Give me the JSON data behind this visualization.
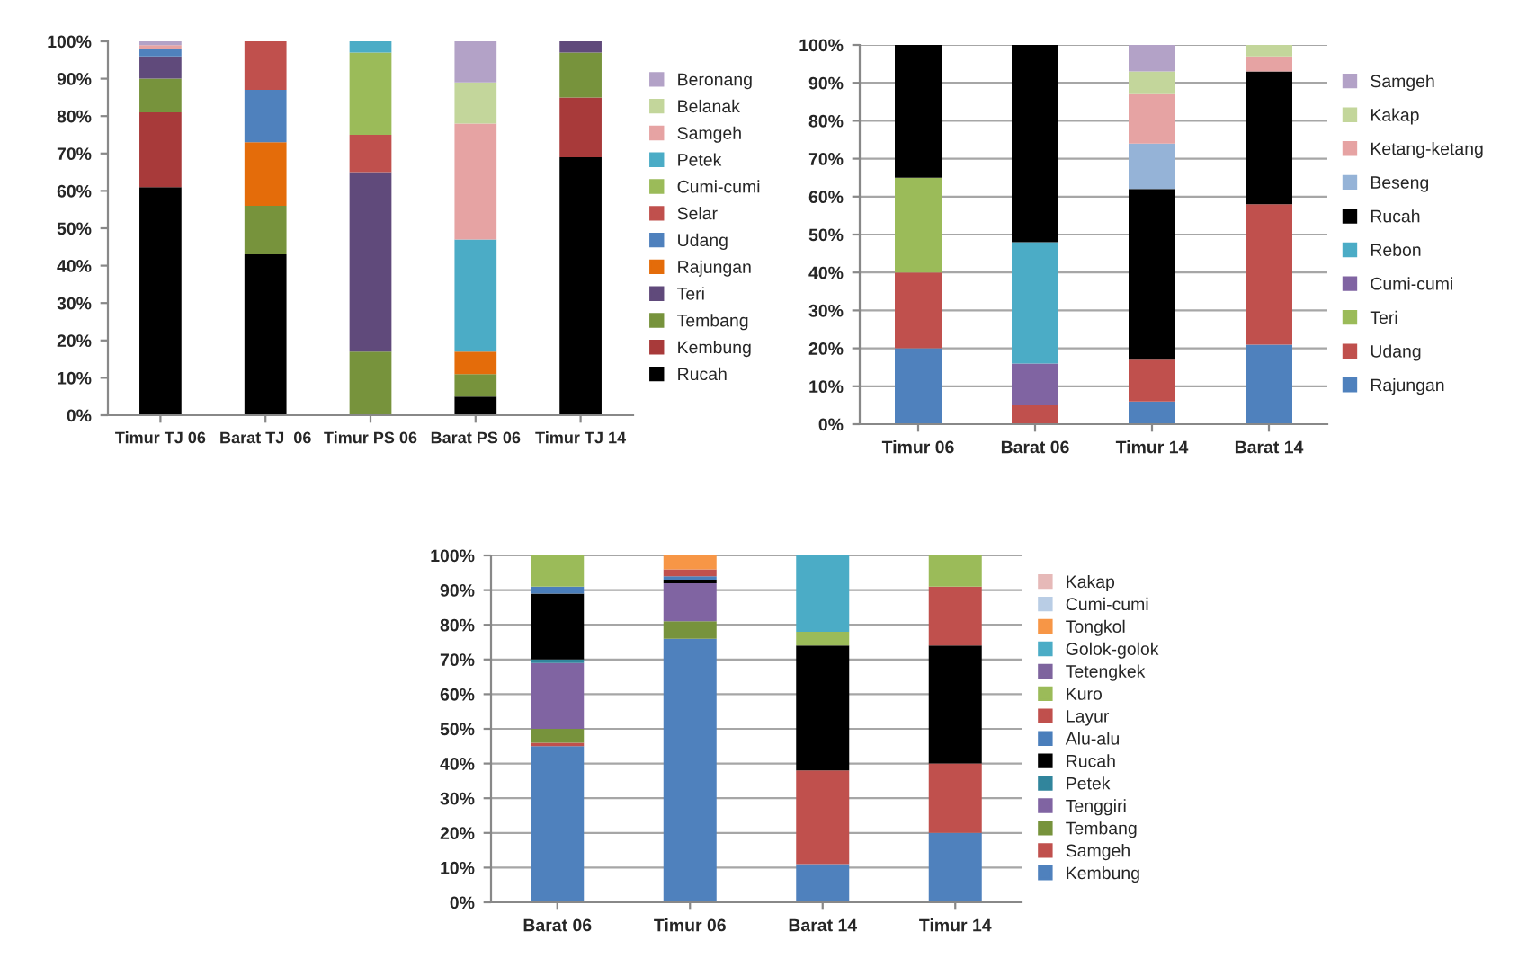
{
  "chart_data": [
    {
      "type": "bar",
      "stacked": true,
      "categories": [
        "Timur TJ 06",
        "Barat TJ  06",
        "Timur PS 06",
        "Barat PS 06",
        "Timur TJ 14"
      ],
      "ylim": [
        0,
        100
      ],
      "yticks": [
        {
          "value": 0,
          "label": "0%"
        },
        {
          "value": 10,
          "label": "10%"
        },
        {
          "value": 20,
          "label": "20%"
        },
        {
          "value": 30,
          "label": "30%"
        },
        {
          "value": 40,
          "label": "40%"
        },
        {
          "value": 50,
          "label": "50%"
        },
        {
          "value": 60,
          "label": "60%"
        },
        {
          "value": 70,
          "label": "70%"
        },
        {
          "value": 80,
          "label": "80%"
        },
        {
          "value": 90,
          "label": "90%"
        },
        {
          "value": 100,
          "label": "100%"
        }
      ],
      "grid": false,
      "legend": "right",
      "series": [
        {
          "name": "Rucah",
          "color": "#000000",
          "values": [
            61,
            43,
            null,
            5,
            69
          ]
        },
        {
          "name": "Kembung",
          "color": "#a83a3a",
          "values": [
            20,
            null,
            null,
            null,
            16
          ]
        },
        {
          "name": "Tembang",
          "color": "#77933c",
          "values": [
            9,
            13,
            17,
            6,
            12
          ]
        },
        {
          "name": "Teri",
          "color": "#604a7b",
          "values": [
            6,
            null,
            48,
            null,
            3
          ]
        },
        {
          "name": "Rajungan",
          "color": "#e46c0a",
          "values": [
            null,
            17,
            null,
            6,
            null
          ]
        },
        {
          "name": "Udang",
          "color": "#4f81bd",
          "values": [
            2,
            14,
            null,
            null,
            null
          ]
        },
        {
          "name": "Selar",
          "color": "#c0504d",
          "values": [
            null,
            13,
            10,
            null,
            null
          ]
        },
        {
          "name": "Cumi-cumi",
          "color": "#9bbb59",
          "values": [
            null,
            null,
            22,
            null,
            null
          ]
        },
        {
          "name": "Petek",
          "color": "#4bacc6",
          "values": [
            null,
            null,
            3,
            30,
            null
          ]
        },
        {
          "name": "Samgeh",
          "color": "#e6a3a3",
          "values": [
            1,
            null,
            null,
            31,
            null
          ]
        },
        {
          "name": "Belanak",
          "color": "#c3d69b",
          "values": [
            null,
            null,
            null,
            11,
            null
          ]
        },
        {
          "name": "Beronang",
          "color": "#b3a2c7",
          "values": [
            1,
            null,
            null,
            11,
            null
          ]
        }
      ]
    },
    {
      "type": "bar",
      "stacked": true,
      "categories": [
        "Timur 06",
        "Barat 06",
        "Timur 14",
        "Barat 14"
      ],
      "ylim": [
        0,
        100
      ],
      "yticks": [
        {
          "value": 0,
          "label": "0%"
        },
        {
          "value": 10,
          "label": "10%"
        },
        {
          "value": 20,
          "label": "20%"
        },
        {
          "value": 30,
          "label": "30%"
        },
        {
          "value": 40,
          "label": "40%"
        },
        {
          "value": 50,
          "label": "50%"
        },
        {
          "value": 60,
          "label": "60%"
        },
        {
          "value": 70,
          "label": "70%"
        },
        {
          "value": 80,
          "label": "80%"
        },
        {
          "value": 90,
          "label": "90%"
        },
        {
          "value": 100,
          "label": "100%"
        }
      ],
      "grid": "y",
      "legend": "right",
      "series": [
        {
          "name": "Rajungan",
          "color": "#4f81bd",
          "values": [
            20,
            null,
            6,
            21
          ]
        },
        {
          "name": "Udang",
          "color": "#c0504d",
          "values": [
            20,
            5,
            11,
            37
          ]
        },
        {
          "name": "Teri",
          "color": "#9bbb59",
          "values": [
            25,
            null,
            null,
            null
          ]
        },
        {
          "name": "Cumi-cumi",
          "color": "#8064a2",
          "values": [
            null,
            11,
            null,
            null
          ]
        },
        {
          "name": "Rebon",
          "color": "#4bacc6",
          "values": [
            null,
            32,
            null,
            null
          ]
        },
        {
          "name": "Rucah",
          "color": "#000000",
          "values": [
            35,
            52,
            45,
            35
          ]
        },
        {
          "name": "Beseng",
          "color": "#95b3d7",
          "values": [
            null,
            null,
            12,
            null
          ]
        },
        {
          "name": "Ketang-ketang",
          "color": "#e6a3a3",
          "values": [
            null,
            null,
            13,
            4
          ]
        },
        {
          "name": "Kakap",
          "color": "#c3d69b",
          "values": [
            null,
            null,
            6,
            3
          ]
        },
        {
          "name": "Samgeh",
          "color": "#b3a2c7",
          "values": [
            null,
            null,
            7,
            null
          ]
        }
      ]
    },
    {
      "type": "bar",
      "stacked": true,
      "categories": [
        "Barat 06",
        "Timur 06",
        "Barat 14",
        "Timur 14"
      ],
      "ylim": [
        0,
        100
      ],
      "yticks": [
        {
          "value": 0,
          "label": "0%"
        },
        {
          "value": 10,
          "label": "10%"
        },
        {
          "value": 20,
          "label": "20%"
        },
        {
          "value": 30,
          "label": "30%"
        },
        {
          "value": 40,
          "label": "40%"
        },
        {
          "value": 50,
          "label": "50%"
        },
        {
          "value": 60,
          "label": "60%"
        },
        {
          "value": 70,
          "label": "70%"
        },
        {
          "value": 80,
          "label": "80%"
        },
        {
          "value": 90,
          "label": "90%"
        },
        {
          "value": 100,
          "label": "100%"
        }
      ],
      "grid": "y",
      "legend": "right",
      "series": [
        {
          "name": "Kembung",
          "color": "#4f81bd",
          "values": [
            45,
            76,
            11,
            20
          ]
        },
        {
          "name": "Samgeh",
          "color": "#c0504d",
          "values": [
            1,
            null,
            27,
            20
          ]
        },
        {
          "name": "Tembang",
          "color": "#77933c",
          "values": [
            4,
            5,
            null,
            null
          ]
        },
        {
          "name": "Tenggiri",
          "color": "#8064a2",
          "values": [
            19,
            11,
            null,
            null
          ]
        },
        {
          "name": "Petek",
          "color": "#31859c",
          "values": [
            1,
            null,
            null,
            null
          ]
        },
        {
          "name": "Rucah",
          "color": "#000000",
          "values": [
            19,
            1,
            36,
            34
          ]
        },
        {
          "name": "Alu-alu",
          "color": "#4a7ebb",
          "values": [
            2,
            1,
            null,
            null
          ]
        },
        {
          "name": "Layur",
          "color": "#c0504d",
          "values": [
            null,
            2,
            null,
            17
          ]
        },
        {
          "name": "Kuro",
          "color": "#9bbb59",
          "values": [
            9,
            null,
            4,
            9
          ]
        },
        {
          "name": "Tetengkek",
          "color": "#7e649e",
          "values": [
            null,
            null,
            null,
            null
          ]
        },
        {
          "name": "Golok-golok",
          "color": "#4bacc6",
          "values": [
            null,
            null,
            22,
            null
          ]
        },
        {
          "name": "Tongkol",
          "color": "#f79646",
          "values": [
            null,
            4,
            null,
            null
          ]
        },
        {
          "name": "Cumi-cumi",
          "color": "#b9cde5",
          "values": [
            null,
            null,
            null,
            null
          ]
        },
        {
          "name": "Kakap",
          "color": "#e6b9b8",
          "values": [
            null,
            null,
            null,
            null
          ]
        }
      ]
    }
  ]
}
